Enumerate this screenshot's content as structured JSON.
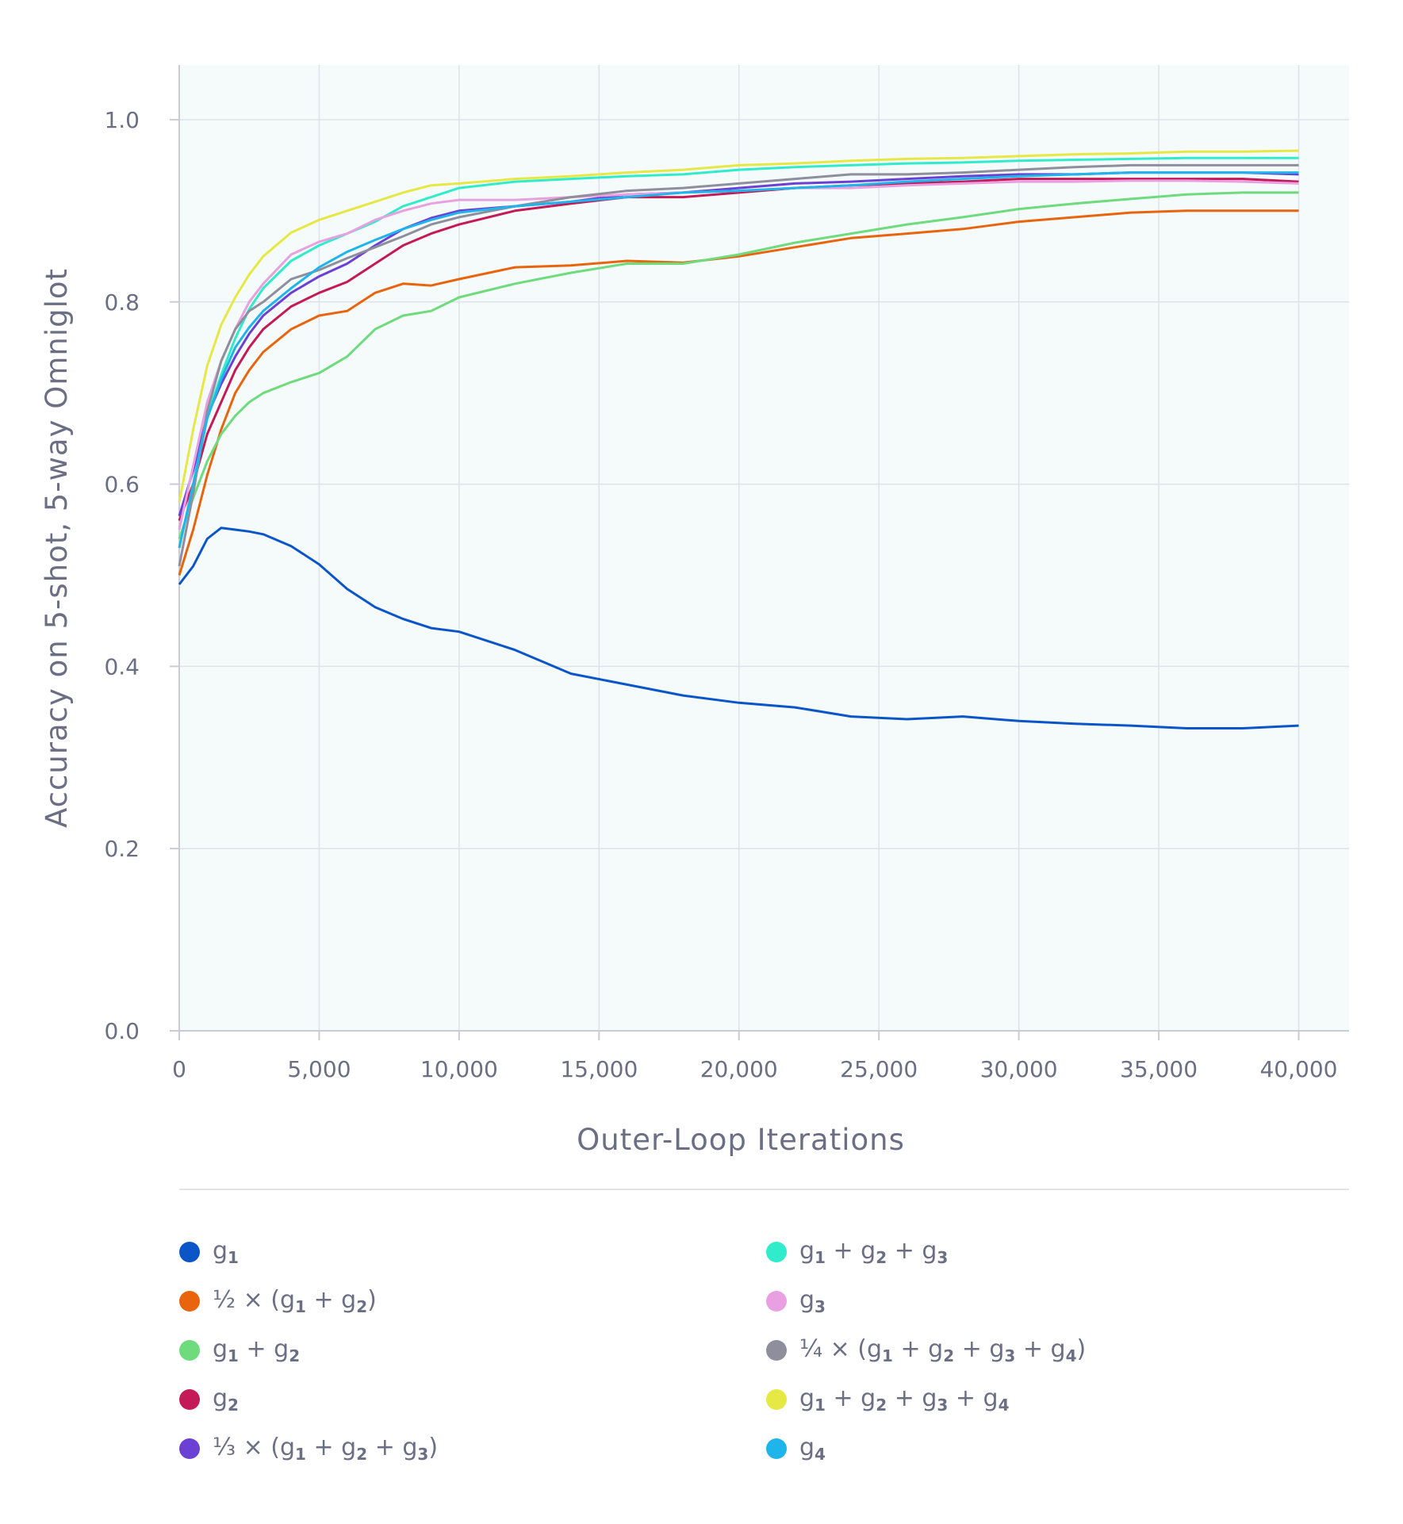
{
  "chart_data": {
    "type": "line",
    "title": "",
    "xlabel": "Outer-Loop Iterations",
    "ylabel": "Accuracy on 5-shot, 5-way Omniglot",
    "xlim": [
      0,
      41800
    ],
    "ylim": [
      0,
      1.06
    ],
    "grid": true,
    "legend_position": "bottom",
    "x_ticks": [
      0,
      5000,
      10000,
      15000,
      20000,
      25000,
      30000,
      35000,
      40000
    ],
    "x_tick_labels": [
      "0",
      "5,000",
      "10,000",
      "15,000",
      "20,000",
      "25,000",
      "30,000",
      "35,000",
      "40,000"
    ],
    "y_ticks": [
      0,
      0.2,
      0.4,
      0.6,
      0.8,
      1.0
    ],
    "y_tick_labels": [
      "0.0",
      "0.2",
      "0.4",
      "0.6",
      "0.8",
      "1.0"
    ],
    "x": [
      0,
      500,
      1000,
      1500,
      2000,
      2500,
      3000,
      4000,
      5000,
      6000,
      7000,
      8000,
      9000,
      10000,
      12000,
      14000,
      16000,
      18000,
      20000,
      22000,
      24000,
      26000,
      28000,
      30000,
      32000,
      34000,
      36000,
      38000,
      40000
    ],
    "series": [
      {
        "name": "g1",
        "color": "#0a56c9",
        "values": [
          0.49,
          0.51,
          0.54,
          0.552,
          0.55,
          0.548,
          0.545,
          0.532,
          0.512,
          0.485,
          0.465,
          0.452,
          0.442,
          0.438,
          0.418,
          0.392,
          0.38,
          0.368,
          0.36,
          0.355,
          0.345,
          0.342,
          0.345,
          0.34,
          0.337,
          0.335,
          0.332,
          0.332,
          0.335
        ]
      },
      {
        "name": "½ × (g1 + g2)",
        "color": "#e8650e",
        "values": [
          0.5,
          0.55,
          0.61,
          0.66,
          0.7,
          0.725,
          0.745,
          0.77,
          0.785,
          0.79,
          0.81,
          0.82,
          0.818,
          0.825,
          0.838,
          0.84,
          0.845,
          0.843,
          0.85,
          0.86,
          0.87,
          0.875,
          0.88,
          0.888,
          0.893,
          0.898,
          0.9,
          0.9,
          0.9
        ]
      },
      {
        "name": "g1 + g2",
        "color": "#6edb7d",
        "values": [
          0.54,
          0.585,
          0.625,
          0.655,
          0.675,
          0.69,
          0.7,
          0.712,
          0.722,
          0.74,
          0.77,
          0.785,
          0.79,
          0.805,
          0.82,
          0.832,
          0.842,
          0.842,
          0.852,
          0.865,
          0.875,
          0.885,
          0.893,
          0.902,
          0.908,
          0.913,
          0.918,
          0.92,
          0.92
        ]
      },
      {
        "name": "g2",
        "color": "#c41a58",
        "values": [
          0.56,
          0.6,
          0.655,
          0.69,
          0.725,
          0.75,
          0.77,
          0.795,
          0.81,
          0.822,
          0.842,
          0.862,
          0.875,
          0.885,
          0.9,
          0.908,
          0.915,
          0.915,
          0.92,
          0.925,
          0.928,
          0.93,
          0.932,
          0.935,
          0.935,
          0.935,
          0.935,
          0.935,
          0.932
        ]
      },
      {
        "name": "⅓ × (g1 + g2 + g3)",
        "color": "#6b40d4",
        "values": [
          0.565,
          0.615,
          0.675,
          0.71,
          0.74,
          0.765,
          0.785,
          0.81,
          0.828,
          0.842,
          0.862,
          0.88,
          0.892,
          0.9,
          0.905,
          0.91,
          0.918,
          0.92,
          0.925,
          0.93,
          0.932,
          0.935,
          0.938,
          0.94,
          0.94,
          0.942,
          0.942,
          0.942,
          0.94
        ]
      },
      {
        "name": "g1 + g2 + g3",
        "color": "#30ecca",
        "values": [
          0.53,
          0.6,
          0.675,
          0.72,
          0.76,
          0.792,
          0.815,
          0.845,
          0.862,
          0.875,
          0.888,
          0.905,
          0.915,
          0.925,
          0.932,
          0.935,
          0.938,
          0.94,
          0.945,
          0.948,
          0.95,
          0.952,
          0.953,
          0.955,
          0.956,
          0.957,
          0.958,
          0.958,
          0.958
        ]
      },
      {
        "name": "g3",
        "color": "#e8a0e0",
        "values": [
          0.55,
          0.62,
          0.69,
          0.735,
          0.77,
          0.8,
          0.82,
          0.852,
          0.866,
          0.875,
          0.89,
          0.9,
          0.908,
          0.912,
          0.912,
          0.915,
          0.918,
          0.92,
          0.922,
          0.925,
          0.925,
          0.928,
          0.93,
          0.932,
          0.932,
          0.933,
          0.933,
          0.932,
          0.93
        ]
      },
      {
        "name": "¼ × (g1 + g2 + g3 + g4)",
        "color": "#8e8e9c",
        "values": [
          0.51,
          0.59,
          0.68,
          0.735,
          0.77,
          0.79,
          0.8,
          0.825,
          0.835,
          0.848,
          0.86,
          0.872,
          0.885,
          0.893,
          0.905,
          0.915,
          0.922,
          0.925,
          0.93,
          0.935,
          0.94,
          0.94,
          0.942,
          0.945,
          0.948,
          0.95,
          0.95,
          0.95,
          0.95
        ]
      },
      {
        "name": "g1 + g2 + g3 + g4",
        "color": "#e6e844",
        "values": [
          0.58,
          0.66,
          0.73,
          0.775,
          0.805,
          0.83,
          0.85,
          0.876,
          0.89,
          0.9,
          0.91,
          0.92,
          0.928,
          0.93,
          0.935,
          0.938,
          0.942,
          0.945,
          0.95,
          0.952,
          0.955,
          0.957,
          0.958,
          0.96,
          0.962,
          0.963,
          0.965,
          0.965,
          0.966
        ]
      },
      {
        "name": "g4",
        "color": "#20b5ea",
        "values": [
          0.53,
          0.6,
          0.672,
          0.715,
          0.75,
          0.772,
          0.79,
          0.815,
          0.838,
          0.855,
          0.868,
          0.88,
          0.89,
          0.898,
          0.905,
          0.91,
          0.915,
          0.92,
          0.922,
          0.925,
          0.928,
          0.932,
          0.935,
          0.938,
          0.94,
          0.942,
          0.942,
          0.942,
          0.942
        ]
      }
    ]
  },
  "legend": {
    "left": [
      {
        "base": "g",
        "parts": [
          [
            "g",
            "1"
          ]
        ],
        "prefix": "",
        "label_html": "g<sub>1</sub>"
      },
      {
        "label_html": "½ × (g<sub>1</sub> + g<sub>2</sub>)"
      },
      {
        "label_html": "g<sub>1</sub> + g<sub>2</sub>"
      },
      {
        "label_html": "g<sub>2</sub>"
      },
      {
        "label_html": "⅓ × (g<sub>1</sub> + g<sub>2</sub> + g<sub>3</sub>)"
      }
    ],
    "right": [
      {
        "label_html": "g<sub>1</sub> + g<sub>2</sub> + g<sub>3</sub>"
      },
      {
        "label_html": "g<sub>3</sub>"
      },
      {
        "label_html": "¼ × (g<sub>1</sub> + g<sub>2</sub> + g<sub>3</sub> + g<sub>4</sub>)"
      },
      {
        "label_html": "g<sub>1</sub> + g<sub>2</sub> + g<sub>3</sub> + g<sub>4</sub>"
      },
      {
        "label_html": "g<sub>4</sub>"
      }
    ]
  }
}
